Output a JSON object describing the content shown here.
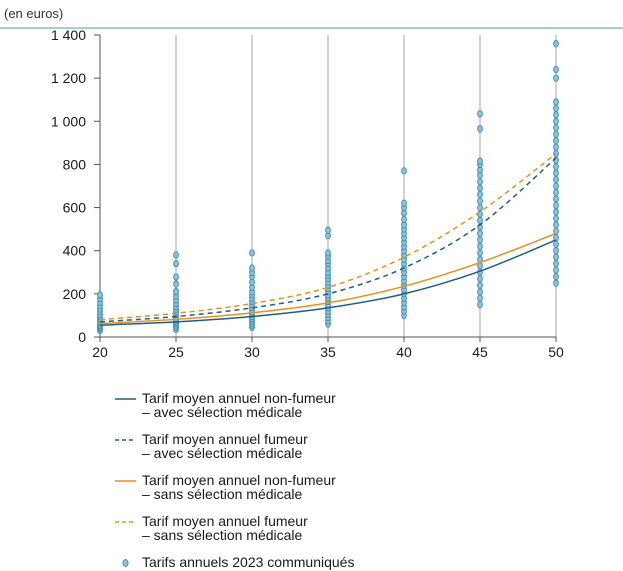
{
  "chart_data": {
    "type": "scatter",
    "title": "",
    "unit_label": "(en euros)",
    "xlabel": "",
    "ylabel": "",
    "xlim": [
      20,
      50
    ],
    "ylim": [
      0,
      1400
    ],
    "x_ticks": [
      20,
      25,
      30,
      35,
      40,
      45,
      50
    ],
    "y_ticks": [
      0,
      200,
      400,
      600,
      800,
      1000,
      1200,
      1400
    ],
    "y_tick_labels": [
      "0",
      "200",
      "400",
      "600",
      "800",
      "1 000",
      "1 200",
      "1 400"
    ],
    "grid": "vertical",
    "legend_position": "bottom",
    "colors": {
      "non_fumeur_avec": "#1d5f86",
      "fumeur_avec": "#1d5f86",
      "non_fumeur_sans": "#e8901e",
      "fumeur_sans": "#e8901e",
      "scatter_fill": "#8fc3dc",
      "scatter_stroke": "#3b8bb3",
      "grid": "#c8c8c8",
      "axis": "#555555",
      "top_rule": "#4aa3a0"
    },
    "series": [
      {
        "key": "non_fumeur_avec",
        "name": "Tarif moyen annuel non-fumeur – avec sélection médicale",
        "legend_lines": [
          "Tarif moyen annuel non-fumeur",
          "– avec sélection médicale"
        ],
        "style": "solid",
        "x": [
          20,
          25,
          30,
          35,
          40,
          45,
          50
        ],
        "y": [
          55,
          70,
          95,
          135,
          200,
          305,
          450
        ]
      },
      {
        "key": "fumeur_avec",
        "name": "Tarif moyen annuel fumeur – avec sélection médicale",
        "legend_lines": [
          "Tarif moyen annuel fumeur",
          "– avec sélection médicale"
        ],
        "style": "dashed",
        "x": [
          20,
          25,
          30,
          35,
          40,
          45,
          50
        ],
        "y": [
          70,
          95,
          135,
          200,
          320,
          520,
          830
        ]
      },
      {
        "key": "non_fumeur_sans",
        "name": "Tarif moyen annuel non-fumeur – sans sélection médicale",
        "legend_lines": [
          "Tarif moyen annuel non-fumeur",
          "– sans sélection médicale"
        ],
        "style": "solid",
        "x": [
          20,
          25,
          30,
          35,
          40,
          45,
          50
        ],
        "y": [
          62,
          82,
          112,
          158,
          235,
          345,
          480
        ]
      },
      {
        "key": "fumeur_sans",
        "name": "Tarif moyen annuel fumeur – sans sélection médicale",
        "legend_lines": [
          "Tarif moyen annuel fumeur",
          "– sans sélection médicale"
        ],
        "style": "dashed",
        "x": [
          20,
          25,
          30,
          35,
          40,
          45,
          50
        ],
        "y": [
          80,
          110,
          155,
          230,
          370,
          580,
          850
        ]
      },
      {
        "key": "tarifs_2023",
        "name": "Tarifs annuels 2023 communiqués",
        "legend_lines": [
          "Tarifs annuels 2023 communiqués"
        ],
        "style": "points",
        "points": [
          [
            20,
            30
          ],
          [
            20,
            38
          ],
          [
            20,
            45
          ],
          [
            20,
            52
          ],
          [
            20,
            60
          ],
          [
            20,
            68
          ],
          [
            20,
            75
          ],
          [
            20,
            85
          ],
          [
            20,
            95
          ],
          [
            20,
            105
          ],
          [
            20,
            118
          ],
          [
            20,
            130
          ],
          [
            20,
            145
          ],
          [
            20,
            160
          ],
          [
            20,
            178
          ],
          [
            20,
            195
          ],
          [
            25,
            35
          ],
          [
            25,
            45
          ],
          [
            25,
            55
          ],
          [
            25,
            62
          ],
          [
            25,
            70
          ],
          [
            25,
            78
          ],
          [
            25,
            86
          ],
          [
            25,
            95
          ],
          [
            25,
            105
          ],
          [
            25,
            115
          ],
          [
            25,
            128
          ],
          [
            25,
            140
          ],
          [
            25,
            155
          ],
          [
            25,
            172
          ],
          [
            25,
            190
          ],
          [
            25,
            210
          ],
          [
            25,
            245
          ],
          [
            25,
            278
          ],
          [
            25,
            340
          ],
          [
            25,
            380
          ],
          [
            30,
            45
          ],
          [
            30,
            55
          ],
          [
            30,
            65
          ],
          [
            30,
            75
          ],
          [
            30,
            85
          ],
          [
            30,
            95
          ],
          [
            30,
            105
          ],
          [
            30,
            115
          ],
          [
            30,
            125
          ],
          [
            30,
            138
          ],
          [
            30,
            150
          ],
          [
            30,
            165
          ],
          [
            30,
            180
          ],
          [
            30,
            195
          ],
          [
            30,
            210
          ],
          [
            30,
            230
          ],
          [
            30,
            255
          ],
          [
            30,
            280
          ],
          [
            30,
            300
          ],
          [
            30,
            320
          ],
          [
            30,
            390
          ],
          [
            35,
            60
          ],
          [
            35,
            75
          ],
          [
            35,
            90
          ],
          [
            35,
            105
          ],
          [
            35,
            120
          ],
          [
            35,
            135
          ],
          [
            35,
            150
          ],
          [
            35,
            165
          ],
          [
            35,
            180
          ],
          [
            35,
            195
          ],
          [
            35,
            210
          ],
          [
            35,
            225
          ],
          [
            35,
            240
          ],
          [
            35,
            255
          ],
          [
            35,
            270
          ],
          [
            35,
            285
          ],
          [
            35,
            300
          ],
          [
            35,
            320
          ],
          [
            35,
            340
          ],
          [
            35,
            355
          ],
          [
            35,
            375
          ],
          [
            35,
            390
          ],
          [
            35,
            470
          ],
          [
            35,
            495
          ],
          [
            40,
            100
          ],
          [
            40,
            120
          ],
          [
            40,
            140
          ],
          [
            40,
            160
          ],
          [
            40,
            180
          ],
          [
            40,
            200
          ],
          [
            40,
            220
          ],
          [
            40,
            240
          ],
          [
            40,
            260
          ],
          [
            40,
            280
          ],
          [
            40,
            300
          ],
          [
            40,
            320
          ],
          [
            40,
            340
          ],
          [
            40,
            360
          ],
          [
            40,
            380
          ],
          [
            40,
            400
          ],
          [
            40,
            420
          ],
          [
            40,
            440
          ],
          [
            40,
            460
          ],
          [
            40,
            480
          ],
          [
            40,
            500
          ],
          [
            40,
            520
          ],
          [
            40,
            545
          ],
          [
            40,
            575
          ],
          [
            40,
            600
          ],
          [
            40,
            620
          ],
          [
            40,
            770
          ],
          [
            45,
            150
          ],
          [
            45,
            180
          ],
          [
            45,
            210
          ],
          [
            45,
            240
          ],
          [
            45,
            270
          ],
          [
            45,
            300
          ],
          [
            45,
            330
          ],
          [
            45,
            360
          ],
          [
            45,
            390
          ],
          [
            45,
            420
          ],
          [
            45,
            450
          ],
          [
            45,
            480
          ],
          [
            45,
            510
          ],
          [
            45,
            540
          ],
          [
            45,
            570
          ],
          [
            45,
            600
          ],
          [
            45,
            630
          ],
          [
            45,
            660
          ],
          [
            45,
            690
          ],
          [
            45,
            720
          ],
          [
            45,
            750
          ],
          [
            45,
            775
          ],
          [
            45,
            800
          ],
          [
            45,
            815
          ],
          [
            45,
            965
          ],
          [
            45,
            1035
          ],
          [
            50,
            250
          ],
          [
            50,
            280
          ],
          [
            50,
            310
          ],
          [
            50,
            340
          ],
          [
            50,
            370
          ],
          [
            50,
            400
          ],
          [
            50,
            430
          ],
          [
            50,
            460
          ],
          [
            50,
            490
          ],
          [
            50,
            520
          ],
          [
            50,
            550
          ],
          [
            50,
            580
          ],
          [
            50,
            610
          ],
          [
            50,
            640
          ],
          [
            50,
            670
          ],
          [
            50,
            700
          ],
          [
            50,
            730
          ],
          [
            50,
            760
          ],
          [
            50,
            790
          ],
          [
            50,
            820
          ],
          [
            50,
            850
          ],
          [
            50,
            880
          ],
          [
            50,
            910
          ],
          [
            50,
            940
          ],
          [
            50,
            970
          ],
          [
            50,
            1000
          ],
          [
            50,
            1030
          ],
          [
            50,
            1060
          ],
          [
            50,
            1090
          ],
          [
            50,
            1200
          ],
          [
            50,
            1240
          ],
          [
            50,
            1360
          ]
        ]
      }
    ]
  }
}
